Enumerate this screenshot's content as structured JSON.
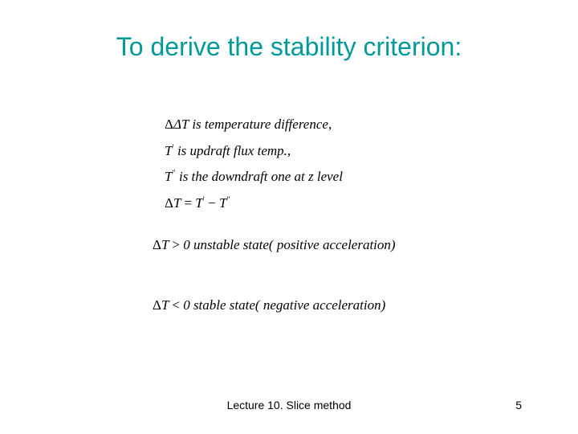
{
  "title": {
    "text": "To derive the stability criterion:",
    "color": "#009999"
  },
  "definitions": {
    "line1_prefix": "ΔT  is  temperature difference",
    "line1_suffix": ",",
    "line2_sym": "T",
    "line2_sup": "′",
    "line2_text": " is updraft  flux temp.,",
    "line3_sym": "T",
    "line3_sup": "″",
    "line3_text": " is the downdraft  one  at z level",
    "line4_lhs": "ΔT = T",
    "line4_sup1": "′",
    "line4_mid": " − T",
    "line4_sup2": "″"
  },
  "unstable": {
    "sym": "ΔT > 0",
    "text": "  unstable  state( positive acceleration)"
  },
  "stable": {
    "sym": "ΔT < 0",
    "text": "  stable  state( negative acceleration)"
  },
  "footer": "Lecture 10. Slice method",
  "page": "5"
}
